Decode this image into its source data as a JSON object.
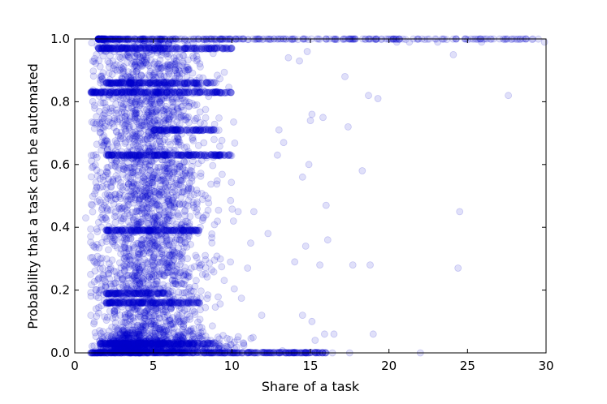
{
  "chart_data": {
    "type": "scatter",
    "title": "",
    "xlabel": "Share of a task",
    "ylabel": "Probability that a task can be automated",
    "xlim": [
      0,
      30
    ],
    "ylim": [
      0,
      1
    ],
    "xticks": [
      0,
      5,
      10,
      15,
      20,
      25,
      30
    ],
    "xtick_labels": [
      "0",
      "5",
      "10",
      "15",
      "20",
      "25",
      "30"
    ],
    "yticks": [
      0,
      0.2,
      0.4,
      0.6,
      0.8,
      1.0
    ],
    "ytick_labels": [
      "0.0",
      "0.2",
      "0.4",
      "0.6",
      "0.8",
      "1.0"
    ],
    "grid": false,
    "legend": "none",
    "marker_color": "#0000cc",
    "marker_alpha": 0.12,
    "dense_bands": [
      {
        "y": 0.0,
        "x_range": [
          1,
          16
        ]
      },
      {
        "y": 0.03,
        "x_range": [
          1.5,
          9
        ]
      },
      {
        "y": 0.16,
        "x_range": [
          2,
          8
        ]
      },
      {
        "y": 0.19,
        "x_range": [
          2,
          6
        ]
      },
      {
        "y": 0.39,
        "x_range": [
          2,
          8
        ]
      },
      {
        "y": 0.63,
        "x_range": [
          2,
          10
        ]
      },
      {
        "y": 0.71,
        "x_range": [
          5,
          9
        ]
      },
      {
        "y": 0.83,
        "x_range": [
          1,
          10
        ]
      },
      {
        "y": 0.86,
        "x_range": [
          2,
          9
        ]
      },
      {
        "y": 0.97,
        "x_range": [
          1.5,
          10
        ]
      },
      {
        "y": 1.0,
        "x_range": [
          1.5,
          30
        ]
      }
    ],
    "outliers": [
      [
        0.7,
        0.43
      ],
      [
        27.6,
        0.82
      ],
      [
        24.5,
        0.45
      ],
      [
        24.4,
        0.27
      ],
      [
        24.1,
        0.95
      ],
      [
        22.0,
        0.0
      ],
      [
        19.3,
        0.81
      ],
      [
        18.7,
        0.82
      ],
      [
        19.0,
        0.06
      ],
      [
        18.8,
        0.28
      ],
      [
        18.3,
        0.58
      ],
      [
        17.7,
        0.28
      ],
      [
        17.4,
        0.72
      ],
      [
        17.2,
        0.88
      ],
      [
        16.5,
        0.06
      ],
      [
        16.1,
        0.36
      ],
      [
        16.0,
        0.47
      ],
      [
        15.8,
        0.75
      ],
      [
        15.6,
        0.28
      ],
      [
        15.1,
        0.76
      ],
      [
        15.0,
        0.74
      ],
      [
        15.1,
        0.1
      ],
      [
        14.8,
        0.96
      ],
      [
        14.9,
        0.6
      ],
      [
        14.5,
        0.56
      ],
      [
        14.3,
        0.93
      ],
      [
        14.7,
        0.34
      ],
      [
        14.5,
        0.12
      ],
      [
        14.0,
        0.29
      ],
      [
        13.3,
        0.67
      ],
      [
        13.0,
        0.71
      ],
      [
        12.9,
        0.63
      ],
      [
        12.3,
        0.38
      ],
      [
        11.9,
        0.12
      ],
      [
        11.4,
        0.45
      ],
      [
        11.2,
        0.35
      ],
      [
        11.0,
        0.27
      ],
      [
        10.4,
        0.45
      ],
      [
        10.1,
        0.42
      ],
      [
        13.6,
        0.94
      ],
      [
        20.5,
        0.99
      ],
      [
        21.3,
        0.99
      ],
      [
        23.1,
        0.99
      ],
      [
        25.9,
        0.99
      ],
      [
        29.9,
        0.99
      ],
      [
        16.4,
        0.0
      ],
      [
        17.5,
        0.0
      ],
      [
        15.9,
        0.06
      ],
      [
        15.3,
        0.04
      ]
    ]
  }
}
